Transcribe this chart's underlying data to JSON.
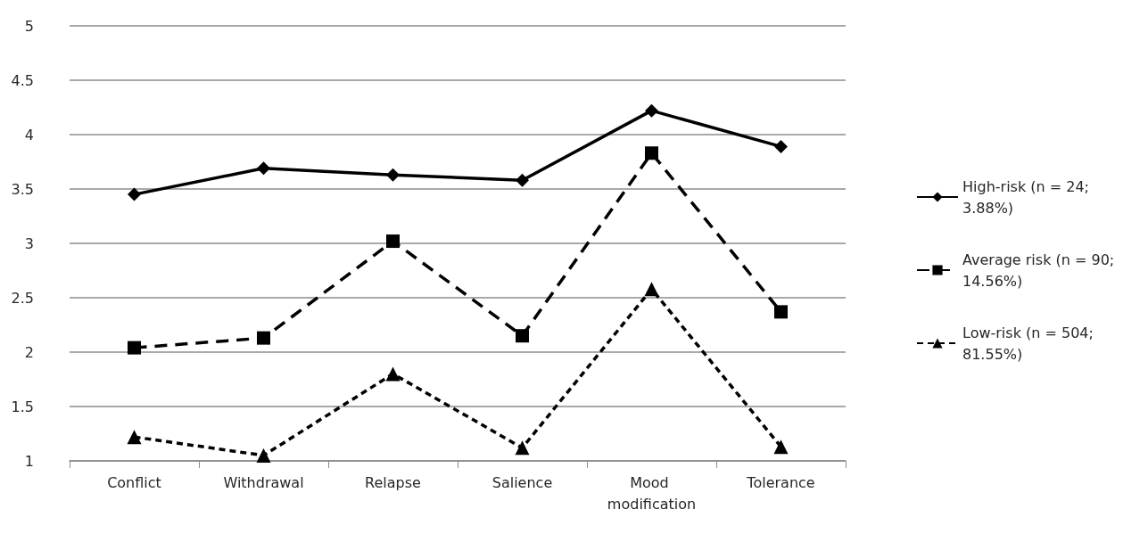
{
  "chart_data": {
    "type": "line",
    "categories": [
      "Conflict",
      "Withdrawal",
      "Relapse",
      "Salience",
      "Mood modification",
      "Tolerance"
    ],
    "series": [
      {
        "name": "High-risk (n = 24; 3.88%)",
        "color": "#000000",
        "marker": "diamond",
        "line_style": "solid",
        "values": [
          3.45,
          3.69,
          3.63,
          3.58,
          4.22,
          3.89
        ]
      },
      {
        "name": "Average risk (n = 90; 14.56%)",
        "color": "#000000",
        "marker": "square",
        "line_style": "dashed",
        "values": [
          2.04,
          2.13,
          3.02,
          2.15,
          3.83,
          2.37
        ]
      },
      {
        "name": "Low-risk (n = 504; 81.55%)",
        "color": "#000000",
        "marker": "triangle",
        "line_style": "dotted",
        "values": [
          1.22,
          1.05,
          1.8,
          1.12,
          2.58,
          1.13
        ]
      }
    ],
    "ylim": [
      1,
      5
    ],
    "yticks": [
      1,
      1.5,
      2,
      2.5,
      3,
      3.5,
      4,
      4.5,
      5
    ],
    "grid": "y",
    "legend": "right"
  }
}
